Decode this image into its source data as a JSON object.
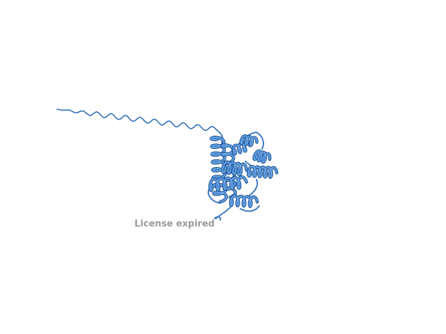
{
  "watermark": "License expired"
}
